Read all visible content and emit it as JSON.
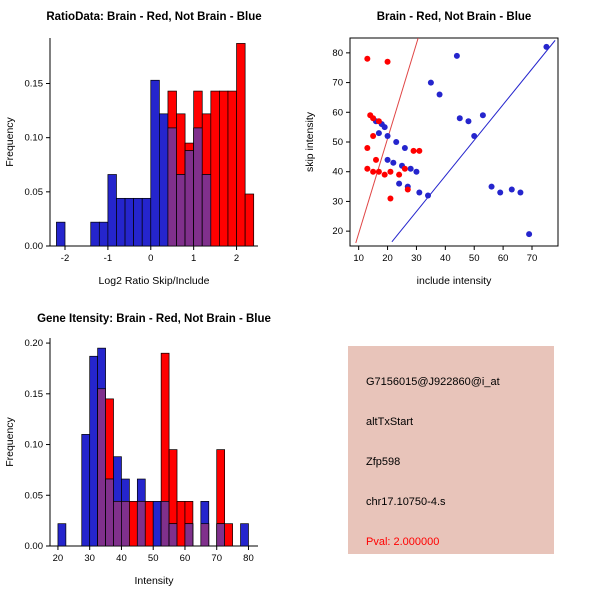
{
  "window": {
    "background": "#FFFFFF"
  },
  "colors": {
    "brain_red": "#FF0000",
    "not_brain_blue": "#2525CD",
    "overlap_purple": "#80308C",
    "axis_black": "#000000",
    "info_box_bg": "#E8C4BA",
    "pval_red": "#FF0000"
  },
  "chart_data": [
    {
      "type": "histogram-overlay",
      "title": "RatioData: Brain - Red, Not Brain - Blue",
      "xlabel": "Log2 Ratio Skip/Include",
      "ylabel": "Frequency",
      "xlim": [
        -2.35,
        2.5
      ],
      "ylim": [
        0,
        0.192
      ],
      "grid": false,
      "legend": "none",
      "xtick_values": [
        -2,
        -1,
        0,
        1,
        2
      ],
      "xtick_labels": [
        "-2",
        "-1",
        "0",
        "1",
        "2"
      ],
      "ytick_values": [
        0,
        0.05,
        0.1,
        0.15
      ],
      "ytick_labels": [
        "0.00",
        "0.05",
        "0.10",
        "0.15"
      ],
      "overlap_color": "#80308C",
      "series": [
        {
          "name": "Not Brain",
          "color": "#2525CD",
          "start": -2.2,
          "bin_width": 0.2,
          "heights": [
            0.022,
            0,
            0,
            0,
            0.022,
            0.022,
            0.066,
            0.044,
            0.044,
            0.044,
            0.044,
            0.153,
            0.122,
            0.109,
            0.066,
            0.088,
            0.109,
            0.066
          ]
        },
        {
          "name": "Brain",
          "color": "#FF0000",
          "start": 0.4,
          "bin_width": 0.2,
          "heights": [
            0.143,
            0.122,
            0.095,
            0.143,
            0.122,
            0.143,
            0.143,
            0.143,
            0.187,
            0.048
          ]
        }
      ]
    },
    {
      "type": "scatter",
      "title": "Brain - Red, Not Brain - Blue",
      "xlabel": "include intensity",
      "ylabel": "skip intensity",
      "xlim": [
        7,
        79
      ],
      "ylim": [
        15,
        85
      ],
      "grid": false,
      "legend": "none",
      "xtick_values": [
        10,
        20,
        30,
        40,
        50,
        60,
        70
      ],
      "xtick_labels": [
        "10",
        "20",
        "30",
        "40",
        "50",
        "60",
        "70"
      ],
      "ytick_values": [
        20,
        30,
        40,
        50,
        60,
        70,
        80
      ],
      "ytick_labels": [
        "20",
        "30",
        "40",
        "50",
        "60",
        "70",
        "80"
      ],
      "series": [
        {
          "name": "Not Brain",
          "color": "#2525CD",
          "points": [
            [
              16,
              57
            ],
            [
              18,
              56
            ],
            [
              19,
              55
            ],
            [
              17,
              53
            ],
            [
              20,
              52
            ],
            [
              23,
              50
            ],
            [
              26,
              48
            ],
            [
              20,
              44
            ],
            [
              22,
              43
            ],
            [
              25,
              42
            ],
            [
              28,
              41
            ],
            [
              30,
              40
            ],
            [
              24,
              36
            ],
            [
              27,
              35
            ],
            [
              31,
              33
            ],
            [
              34,
              32
            ],
            [
              35,
              70
            ],
            [
              38,
              66
            ],
            [
              44,
              79
            ],
            [
              45,
              58
            ],
            [
              48,
              57
            ],
            [
              50,
              52
            ],
            [
              53,
              59
            ],
            [
              56,
              35
            ],
            [
              59,
              33
            ],
            [
              63,
              34
            ],
            [
              66,
              33
            ],
            [
              69,
              19
            ],
            [
              75,
              82
            ]
          ]
        },
        {
          "name": "Brain",
          "color": "#FF0000",
          "points": [
            [
              13,
              78
            ],
            [
              20,
              77
            ],
            [
              14,
              59
            ],
            [
              15,
              58
            ],
            [
              17,
              57
            ],
            [
              15,
              52
            ],
            [
              13,
              48
            ],
            [
              16,
              44
            ],
            [
              13,
              41
            ],
            [
              15,
              40
            ],
            [
              17,
              40
            ],
            [
              19,
              39
            ],
            [
              21,
              40
            ],
            [
              24,
              39
            ],
            [
              26,
              41
            ],
            [
              29,
              47
            ],
            [
              31,
              47
            ],
            [
              27,
              34
            ],
            [
              21,
              31
            ]
          ]
        }
      ],
      "lines": [
        {
          "name": "brain-fit",
          "color": "#E04545",
          "x1": 9,
          "y1": 16,
          "x2": 30.6,
          "y2": 85
        },
        {
          "name": "not-brain-fit",
          "color": "#2525CD",
          "x1": 21.5,
          "y1": 16.4,
          "x2": 78,
          "y2": 84.2
        }
      ]
    },
    {
      "type": "histogram-overlay",
      "title": "Gene Itensity: Brain - Red, Not Brain - Blue",
      "xlabel": "Intensity",
      "ylabel": "Frequency",
      "xlim": [
        17.5,
        83
      ],
      "ylim": [
        0,
        0.205
      ],
      "grid": false,
      "legend": "none",
      "xtick_values": [
        20,
        30,
        40,
        50,
        60,
        70,
        80
      ],
      "xtick_labels": [
        "20",
        "30",
        "40",
        "50",
        "60",
        "70",
        "80"
      ],
      "ytick_values": [
        0,
        0.05,
        0.1,
        0.15,
        0.2
      ],
      "ytick_labels": [
        "0.00",
        "0.05",
        "0.10",
        "0.15",
        "0.20"
      ],
      "overlap_color": "#80308C",
      "series": [
        {
          "name": "Not Brain",
          "color": "#2525CD",
          "start": 20,
          "bin_width": 2.5,
          "heights": [
            0.022,
            0,
            0,
            0.11,
            0.187,
            0.195,
            0.066,
            0.088,
            0.066,
            0,
            0.066,
            0,
            0.044,
            0.044,
            0.022,
            0,
            0.022,
            0,
            0.044,
            0,
            0.022,
            0,
            0,
            0.022
          ]
        },
        {
          "name": "Brain",
          "color": "#FF0000",
          "start": 32.5,
          "bin_width": 2.5,
          "heights": [
            0.155,
            0.145,
            0.044,
            0.044,
            0.044,
            0.044,
            0.044,
            0,
            0.19,
            0.095,
            0.044,
            0.044,
            0,
            0.022,
            0,
            0.095,
            0.022
          ]
        }
      ]
    }
  ],
  "info_panel": {
    "background": "#E8C4BA",
    "lines": [
      {
        "id": "probe-id",
        "text": "G7156015@J922860@i_at",
        "color": "#000000"
      },
      {
        "id": "event-type",
        "text": "altTxStart",
        "color": "#000000"
      },
      {
        "id": "gene-symbol",
        "text": "Zfp598",
        "color": "#000000"
      },
      {
        "id": "genomic-location",
        "text": "chr17.10750-4.s",
        "color": "#000000"
      },
      {
        "id": "pval",
        "text": "Pval: 2.000000",
        "color": "#FF0000"
      }
    ]
  }
}
